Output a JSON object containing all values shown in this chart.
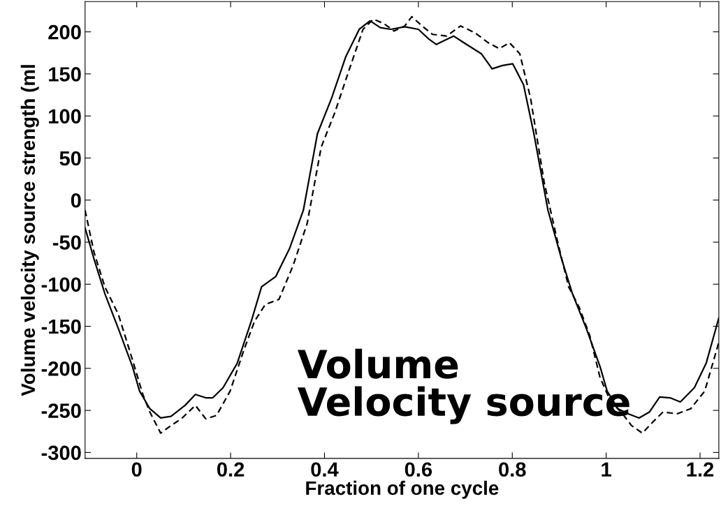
{
  "chart_data": {
    "type": "line",
    "xlabel": "Fraction of one cycle",
    "ylabel": "Volume velocity source strength (ml",
    "annotations": [
      "Volume\nVelocity source"
    ],
    "xlim": [
      -0.11,
      1.24
    ],
    "ylim": [
      -307,
      236
    ],
    "xticks": [
      0,
      0.2,
      0.4,
      0.6,
      0.8,
      1,
      1.2
    ],
    "yticks": [
      -300,
      -250,
      -200,
      -150,
      -100,
      -50,
      0,
      50,
      100,
      150,
      200
    ],
    "grid": false,
    "legend": false,
    "series": [
      {
        "color": "#000000",
        "line_style": "solid",
        "x": [
          -0.11,
          -0.091,
          -0.068,
          -0.039,
          -0.009,
          0.006,
          0.028,
          0.051,
          0.073,
          0.103,
          0.125,
          0.147,
          0.162,
          0.184,
          0.214,
          0.244,
          0.266,
          0.296,
          0.326,
          0.355,
          0.385,
          0.415,
          0.445,
          0.474,
          0.497,
          0.519,
          0.541,
          0.571,
          0.6,
          0.623,
          0.638,
          0.66,
          0.675,
          0.697,
          0.734,
          0.757,
          0.779,
          0.801,
          0.824,
          0.846,
          0.876,
          0.905,
          0.928,
          0.958,
          0.987,
          1.002,
          1.025,
          1.047,
          1.07,
          1.092,
          1.114,
          1.136,
          1.158,
          1.188,
          1.213,
          1.24
        ],
        "values": [
          -33,
          -70,
          -111,
          -153,
          -198,
          -227,
          -248,
          -259,
          -257,
          -244,
          -231,
          -235,
          -235,
          -223,
          -194,
          -144,
          -103,
          -91,
          -57,
          -12,
          79,
          121,
          170,
          203,
          213,
          205,
          203,
          206,
          203,
          191,
          185,
          191,
          195,
          187,
          174,
          156,
          160,
          162,
          137,
          79,
          -12,
          -70,
          -111,
          -153,
          -198,
          -227,
          -248,
          -254,
          -259,
          -252,
          -234,
          -235,
          -240,
          -223,
          -194,
          -140
        ]
      },
      {
        "color": "#000000",
        "line_style": "dashed",
        "x": [
          -0.11,
          -0.091,
          -0.068,
          -0.039,
          -0.009,
          0.013,
          0.028,
          0.051,
          0.073,
          0.095,
          0.125,
          0.147,
          0.17,
          0.199,
          0.229,
          0.251,
          0.274,
          0.303,
          0.333,
          0.363,
          0.393,
          0.422,
          0.452,
          0.482,
          0.504,
          0.526,
          0.548,
          0.571,
          0.586,
          0.608,
          0.63,
          0.66,
          0.69,
          0.72,
          0.749,
          0.772,
          0.794,
          0.816,
          0.839,
          0.868,
          0.898,
          0.92,
          0.943,
          0.965,
          0.987,
          1.01,
          1.032,
          1.054,
          1.077,
          1.099,
          1.121,
          1.151,
          1.18,
          1.21,
          1.24
        ],
        "values": [
          -12,
          -62,
          -103,
          -136,
          -190,
          -231,
          -252,
          -277,
          -268,
          -260,
          -244,
          -260,
          -256,
          -227,
          -177,
          -144,
          -124,
          -118,
          -78,
          -28,
          63,
          104,
          154,
          203,
          215,
          210,
          201,
          207,
          218,
          207,
          197,
          195,
          207,
          199,
          187,
          180,
          187,
          174,
          121,
          21,
          -53,
          -103,
          -128,
          -161,
          -211,
          -240,
          -252,
          -268,
          -277,
          -264,
          -252,
          -254,
          -248,
          -227,
          -169
        ]
      }
    ]
  }
}
